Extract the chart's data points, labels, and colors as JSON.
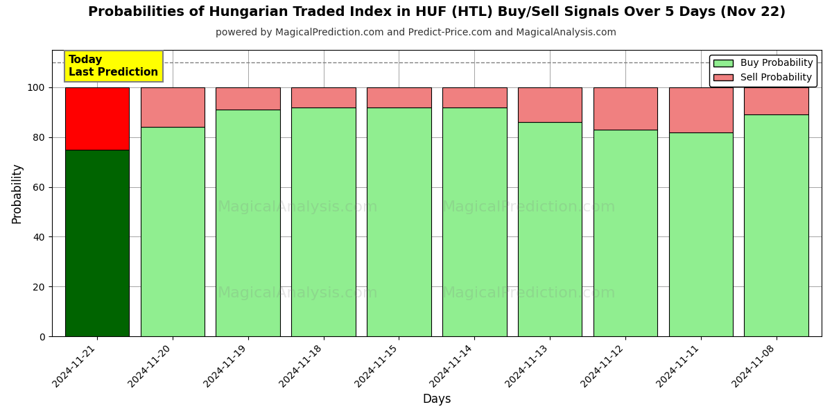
{
  "title": "Probabilities of Hungarian Traded Index in HUF (HTL) Buy/Sell Signals Over 5 Days (Nov 22)",
  "subtitle": "powered by MagicalPrediction.com and Predict-Price.com and MagicalAnalysis.com",
  "xlabel": "Days",
  "ylabel": "Probability",
  "dates": [
    "2024-11-21",
    "2024-11-20",
    "2024-11-19",
    "2024-11-18",
    "2024-11-15",
    "2024-11-14",
    "2024-11-13",
    "2024-11-12",
    "2024-11-11",
    "2024-11-08"
  ],
  "buy_values": [
    75,
    84,
    91,
    92,
    92,
    92,
    86,
    83,
    82,
    89
  ],
  "sell_values": [
    25,
    16,
    9,
    8,
    8,
    8,
    14,
    17,
    18,
    11
  ],
  "buy_colors": [
    "#006400",
    "#90EE90",
    "#90EE90",
    "#90EE90",
    "#90EE90",
    "#90EE90",
    "#90EE90",
    "#90EE90",
    "#90EE90",
    "#90EE90"
  ],
  "sell_colors": [
    "#FF0000",
    "#F08080",
    "#F08080",
    "#F08080",
    "#F08080",
    "#F08080",
    "#F08080",
    "#F08080",
    "#F08080",
    "#F08080"
  ],
  "ylim": [
    0,
    115
  ],
  "dashed_line_y": 110,
  "today_label": "Today\nLast Prediction",
  "legend_buy_color": "#90EE90",
  "legend_sell_color": "#F08080",
  "legend_buy_label": "Buy Probability",
  "legend_sell_label": "Sell Probability",
  "background_color": "#ffffff",
  "watermark_texts": [
    "MagicalAnalysis.com",
    "MagicalPrediction.com"
  ],
  "bar_edge_color": "#000000",
  "bar_width": 0.85
}
